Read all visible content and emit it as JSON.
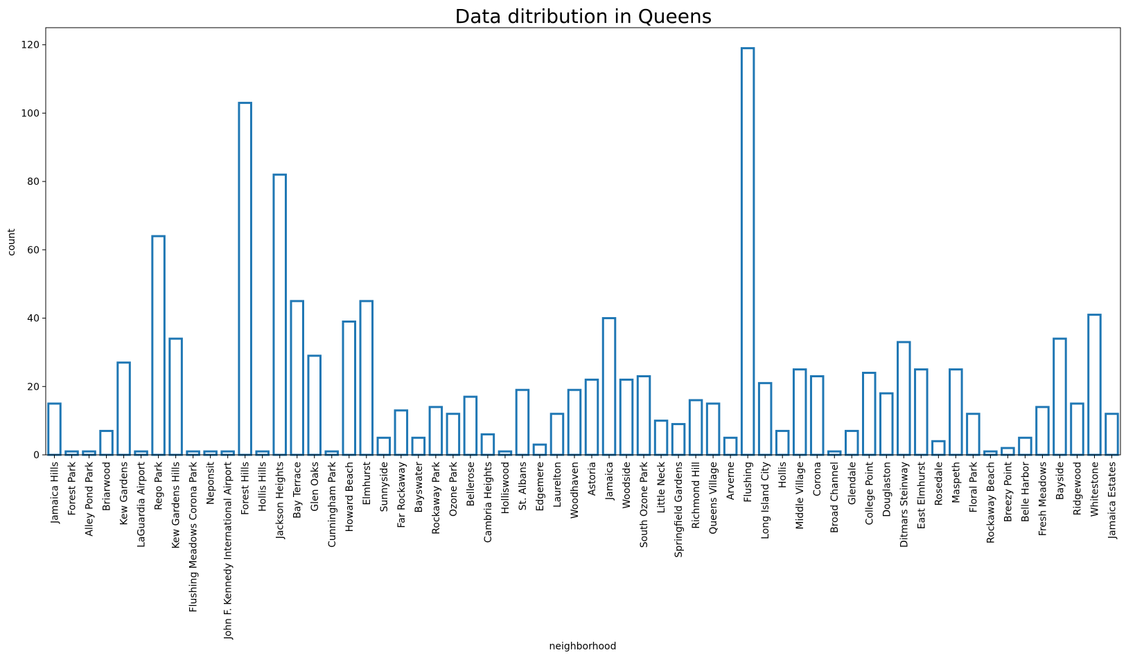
{
  "chart_data": {
    "type": "bar",
    "title": "Data ditribution in Queens",
    "xlabel": "neighborhood",
    "ylabel": "count",
    "ylim": [
      0,
      125
    ],
    "yticks": [
      0,
      20,
      40,
      60,
      80,
      100,
      120
    ],
    "grid": false,
    "bar_style": "outline",
    "bar_color": "#1f77b4",
    "categories": [
      "Jamaica Hills",
      "Forest Park",
      "Alley Pond Park",
      "Briarwood",
      "Kew Gardens",
      "LaGuardia Airport",
      "Rego Park",
      "Kew Gardens Hills",
      "Flushing Meadows Corona Park",
      "Neponsit",
      "John F. Kennedy International Airport",
      "Forest Hills",
      "Hollis Hills",
      "Jackson Heights",
      "Bay Terrace",
      "Glen Oaks",
      "Cunningham Park",
      "Howard Beach",
      "Elmhurst",
      "Sunnyside",
      "Far Rockaway",
      "Bayswater",
      "Rockaway Park",
      "Ozone Park",
      "Bellerose",
      "Cambria Heights",
      "Holliswood",
      "St. Albans",
      "Edgemere",
      "Laurelton",
      "Woodhaven",
      "Astoria",
      "Jamaica",
      "Woodside",
      "South Ozone Park",
      "Little Neck",
      "Springfield Gardens",
      "Richmond Hill",
      "Queens Village",
      "Arverne",
      "Flushing",
      "Long Island City",
      "Hollis",
      "Middle Village",
      "Corona",
      "Broad Channel",
      "Glendale",
      "College Point",
      "Douglaston",
      "Ditmars Steinway",
      "East Elmhurst",
      "Rosedale",
      "Maspeth",
      "Floral Park",
      "Rockaway Beach",
      "Breezy Point",
      "Belle Harbor",
      "Fresh Meadows",
      "Bayside",
      "Ridgewood",
      "Whitestone",
      "Jamaica Estates"
    ],
    "values": [
      15,
      1,
      1,
      7,
      27,
      1,
      64,
      34,
      1,
      1,
      1,
      103,
      1,
      82,
      45,
      29,
      1,
      39,
      45,
      5,
      13,
      5,
      14,
      12,
      17,
      6,
      1,
      19,
      3,
      12,
      19,
      22,
      40,
      22,
      23,
      10,
      9,
      16,
      15,
      5,
      119,
      21,
      7,
      25,
      23,
      1,
      7,
      24,
      18,
      33,
      25,
      4,
      25,
      12,
      1,
      2,
      5,
      14,
      34,
      15,
      41,
      12
    ]
  }
}
